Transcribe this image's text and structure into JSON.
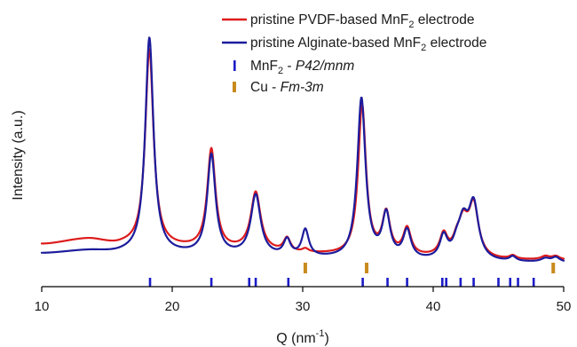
{
  "chart_data": {
    "type": "line",
    "xlabel": "Q (nm⁻¹)",
    "ylabel": "Intensity (a.u.)",
    "xlim": [
      10,
      50
    ],
    "ylim": [
      0,
      100
    ],
    "x_ticks": [
      10,
      20,
      30,
      40,
      50
    ],
    "series": [
      {
        "name": "pristine PVDF-based MnF₂ electrode",
        "color": "#dd1c1c",
        "baseline": [
          [
            10,
            9.5
          ],
          [
            13.5,
            11.5
          ],
          [
            16,
            9
          ],
          [
            18,
            8
          ],
          [
            25,
            6.5
          ],
          [
            30,
            5
          ],
          [
            35,
            4.2
          ],
          [
            40,
            3.5
          ],
          [
            45,
            2.5
          ],
          [
            50,
            2.5
          ]
        ],
        "peaks": [
          {
            "x": 18.25,
            "h": 85.0,
            "w": 0.38
          },
          {
            "x": 23.0,
            "h": 43.0,
            "w": 0.38
          },
          {
            "x": 26.4,
            "h": 25.0,
            "w": 0.45
          },
          {
            "x": 28.8,
            "h": 6.0,
            "w": 0.32
          },
          {
            "x": 30.2,
            "h": 1.5,
            "w": 0.3
          },
          {
            "x": 34.55,
            "h": 64.5,
            "w": 0.36
          },
          {
            "x": 36.4,
            "h": 17.5,
            "w": 0.36
          },
          {
            "x": 38.0,
            "h": 11.5,
            "w": 0.36
          },
          {
            "x": 40.8,
            "h": 9.0,
            "w": 0.35
          },
          {
            "x": 41.8,
            "h": 4.5,
            "w": 0.35
          },
          {
            "x": 42.3,
            "h": 13.5,
            "w": 0.45
          },
          {
            "x": 43.1,
            "h": 22.0,
            "w": 0.45
          },
          {
            "x": 46.1,
            "h": 1.5,
            "w": 0.3
          },
          {
            "x": 48.6,
            "h": 1.5,
            "w": 0.4
          },
          {
            "x": 49.4,
            "h": 1.5,
            "w": 0.35
          }
        ]
      },
      {
        "name": "pristine Alginate-based MnF₂ electrode",
        "color": "#1c1c9c",
        "baseline": [
          [
            10,
            5.5
          ],
          [
            13.5,
            6.5
          ],
          [
            16,
            5.5
          ],
          [
            18,
            5
          ],
          [
            25,
            4.2
          ],
          [
            30,
            3.2
          ],
          [
            35,
            2.5
          ],
          [
            40,
            2
          ],
          [
            45,
            1.5
          ],
          [
            50,
            1.5
          ]
        ],
        "peaks": [
          {
            "x": 18.25,
            "h": 93.0,
            "w": 0.38
          },
          {
            "x": 23.0,
            "h": 43.0,
            "w": 0.38
          },
          {
            "x": 26.4,
            "h": 26.0,
            "w": 0.45
          },
          {
            "x": 28.8,
            "h": 7.0,
            "w": 0.32
          },
          {
            "x": 30.2,
            "h": 11.5,
            "w": 0.32
          },
          {
            "x": 34.5,
            "h": 69.0,
            "w": 0.38
          },
          {
            "x": 36.4,
            "h": 18.5,
            "w": 0.36
          },
          {
            "x": 38.0,
            "h": 12.0,
            "w": 0.36
          },
          {
            "x": 40.8,
            "h": 9.5,
            "w": 0.35
          },
          {
            "x": 41.8,
            "h": 4.5,
            "w": 0.35
          },
          {
            "x": 42.3,
            "h": 15.0,
            "w": 0.45
          },
          {
            "x": 43.1,
            "h": 23.5,
            "w": 0.45
          },
          {
            "x": 46.1,
            "h": 2.0,
            "w": 0.3
          },
          {
            "x": 48.6,
            "h": 1.5,
            "w": 0.4
          },
          {
            "x": 49.4,
            "h": 2.0,
            "w": 0.35
          }
        ]
      }
    ],
    "reference_markers": [
      {
        "name": "MnF₂ - P42/mnm",
        "name_plain": "MnF",
        "name_sub": "2",
        "name_sep": " - ",
        "name_italic": "P42/mnm",
        "color": "#1c1cc8",
        "positions": [
          18.3,
          23.0,
          25.9,
          26.4,
          28.9,
          34.6,
          36.5,
          38.0,
          40.7,
          41.0,
          42.1,
          43.1,
          45.0,
          45.9,
          46.5,
          47.7
        ]
      },
      {
        "name": "Cu - Fm-3m",
        "name_plain": "Cu",
        "name_sub": "",
        "name_sep": " - ",
        "name_italic": "Fm-3m",
        "color": "#c88a1c",
        "positions": [
          30.2,
          34.9,
          49.2
        ]
      }
    ],
    "legend": [
      {
        "name_plain": "pristine PVDF-based MnF",
        "name_sub": "2",
        "name_tail": " electrode"
      },
      {
        "name_plain": "pristine Alginate-based MnF",
        "name_sub": "2",
        "name_tail": " electrode"
      }
    ],
    "legend_position": "top-right",
    "grid": false
  }
}
